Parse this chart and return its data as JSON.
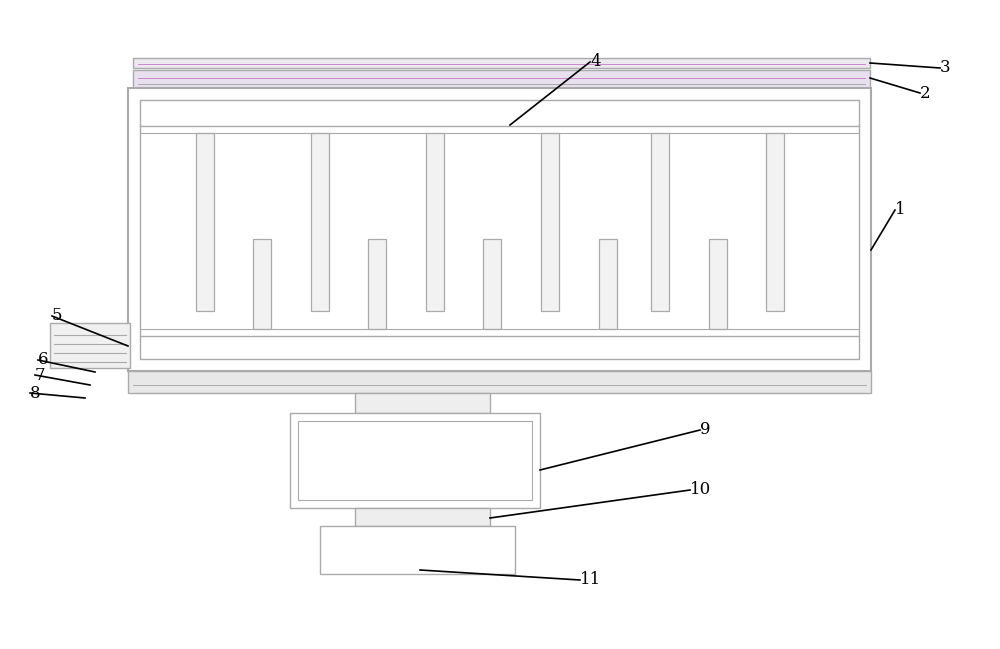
{
  "bg_color": "#ffffff",
  "lc": "#aaaaaa",
  "lc2": "#888888",
  "fig_width": 10.0,
  "fig_height": 6.49,
  "dpi": 100
}
